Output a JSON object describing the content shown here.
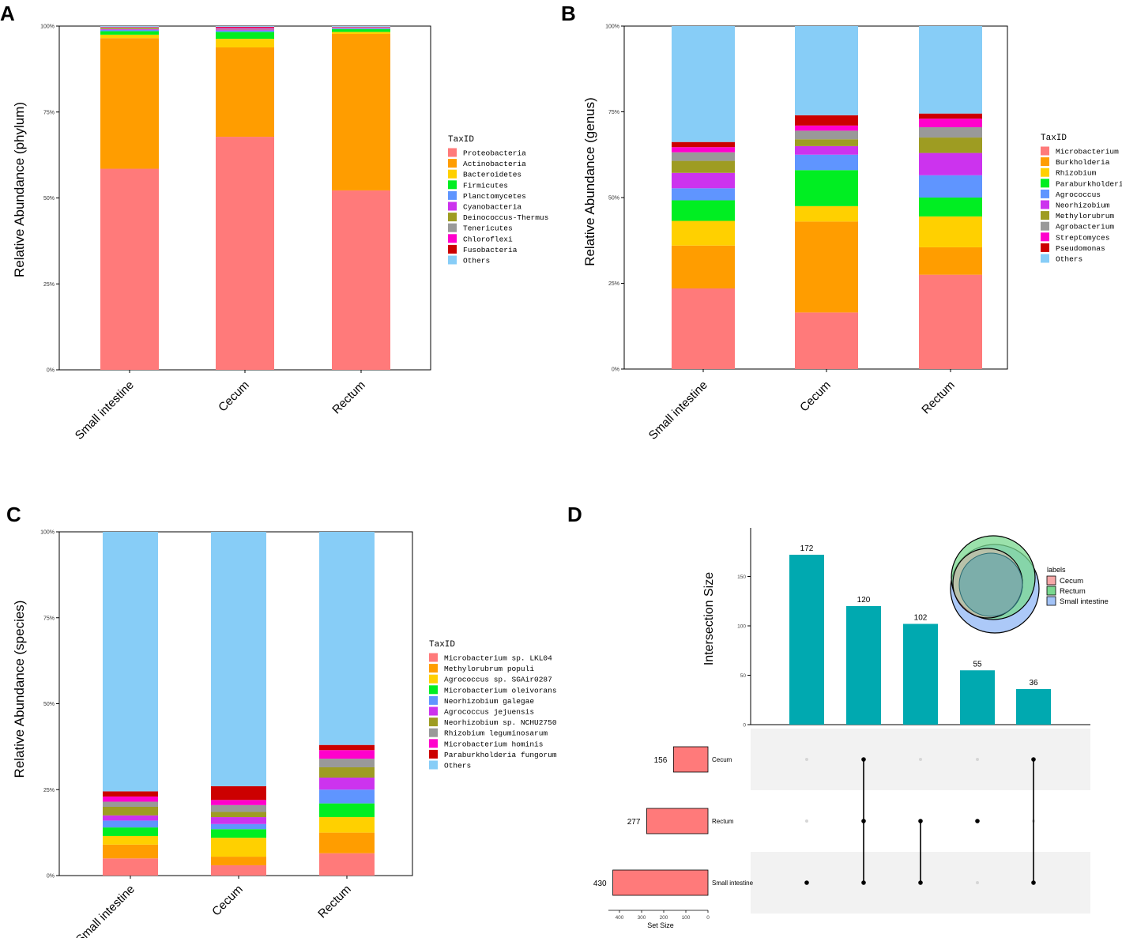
{
  "figure": {
    "panel_labels": [
      "A",
      "B",
      "C",
      "D"
    ]
  },
  "chart_data": [
    {
      "type": "bar",
      "stacked": true,
      "panel": "A",
      "ylabel": "Relative Abundance (phylum)",
      "yticks": [
        "0%",
        "25%",
        "50%",
        "75%",
        "100%"
      ],
      "ylim": [
        0,
        100
      ],
      "categories": [
        "Small intestine",
        "Cecum",
        "Rectum"
      ],
      "legend_title": "TaxID",
      "series": [
        {
          "name": "Proteobacteria",
          "color": "#ff7a7a",
          "values": [
            58.5,
            67.8,
            52.2
          ]
        },
        {
          "name": "Actinobacteria",
          "color": "#ff9d00",
          "values": [
            38.0,
            26.0,
            45.5
          ]
        },
        {
          "name": "Bacteroidetes",
          "color": "#ffd000",
          "values": [
            1.0,
            2.5,
            0.6
          ]
        },
        {
          "name": "Firmicutes",
          "color": "#00ee22",
          "values": [
            1.0,
            2.0,
            0.8
          ]
        },
        {
          "name": "Planctomycetes",
          "color": "#5f95ff",
          "values": [
            0.4,
            0.4,
            0.2
          ]
        },
        {
          "name": "Cyanobacteria",
          "color": "#cc33ee",
          "values": [
            0.2,
            0.3,
            0.1
          ]
        },
        {
          "name": "Deinococcus-Thermus",
          "color": "#9e9c22",
          "values": [
            0.3,
            0.1,
            0.1
          ]
        },
        {
          "name": "Tenericutes",
          "color": "#999999",
          "values": [
            0.2,
            0.2,
            0.1
          ]
        },
        {
          "name": "Chloroflexi",
          "color": "#ff00cc",
          "values": [
            0.1,
            0.3,
            0.1
          ]
        },
        {
          "name": "Fusobacteria",
          "color": "#cc0000",
          "values": [
            0.1,
            0.2,
            0.1
          ]
        },
        {
          "name": "Others",
          "color": "#87cdf7",
          "values": [
            0.2,
            0.2,
            0.2
          ]
        }
      ]
    },
    {
      "type": "bar",
      "stacked": true,
      "panel": "B",
      "ylabel": "Relative Abundance (genus)",
      "yticks": [
        "0%",
        "25%",
        "50%",
        "75%",
        "100%"
      ],
      "ylim": [
        0,
        100
      ],
      "categories": [
        "Small intestine",
        "Cecum",
        "Rectum"
      ],
      "legend_title": "TaxID",
      "series": [
        {
          "name": "Microbacterium",
          "color": "#ff7a7a",
          "values": [
            23.5,
            16.5,
            27.5
          ]
        },
        {
          "name": "Burkholderia",
          "color": "#ff9d00",
          "values": [
            12.5,
            26.5,
            8.0
          ]
        },
        {
          "name": "Rhizobium",
          "color": "#ffd000",
          "values": [
            7.2,
            4.5,
            9.0
          ]
        },
        {
          "name": "Paraburkholderia",
          "color": "#00ee22",
          "values": [
            6.0,
            10.5,
            5.5
          ]
        },
        {
          "name": "Agrococcus",
          "color": "#5f95ff",
          "values": [
            3.5,
            4.5,
            6.5
          ]
        },
        {
          "name": "Neorhizobium",
          "color": "#cc33ee",
          "values": [
            4.5,
            2.5,
            6.5
          ]
        },
        {
          "name": "Methylorubrum",
          "color": "#9e9c22",
          "values": [
            3.5,
            2.0,
            4.5
          ]
        },
        {
          "name": "Agrobacterium",
          "color": "#999999",
          "values": [
            2.5,
            2.5,
            3.0
          ]
        },
        {
          "name": "Streptomyces",
          "color": "#ff00cc",
          "values": [
            1.5,
            1.5,
            2.5
          ]
        },
        {
          "name": "Pseudomonas",
          "color": "#cc0000",
          "values": [
            1.5,
            3.0,
            1.5
          ]
        },
        {
          "name": "Others",
          "color": "#87cdf7",
          "values": [
            33.8,
            26.0,
            25.5
          ]
        }
      ]
    },
    {
      "type": "bar",
      "stacked": true,
      "panel": "C",
      "ylabel": "Relative Abundance (species)",
      "yticks": [
        "0%",
        "25%",
        "50%",
        "75%",
        "100%"
      ],
      "ylim": [
        0,
        100
      ],
      "categories": [
        "Small intestine",
        "Cecum",
        "Rectum"
      ],
      "legend_title": "TaxID",
      "series": [
        {
          "name": "Microbacterium sp. LKL04",
          "color": "#ff7a7a",
          "values": [
            5.0,
            3.0,
            6.5
          ]
        },
        {
          "name": "Methylorubrum populi",
          "color": "#ff9d00",
          "values": [
            4.0,
            2.5,
            6.0
          ]
        },
        {
          "name": "Agrococcus sp. SGAir0287",
          "color": "#ffd000",
          "values": [
            2.5,
            5.5,
            4.5
          ]
        },
        {
          "name": "Microbacterium oleivorans",
          "color": "#00ee22",
          "values": [
            2.5,
            2.5,
            4.0
          ]
        },
        {
          "name": "Neorhizobium galegae",
          "color": "#5f95ff",
          "values": [
            2.0,
            1.5,
            4.0
          ]
        },
        {
          "name": "Agrococcus jejuensis",
          "color": "#cc33ee",
          "values": [
            1.5,
            2.0,
            3.5
          ]
        },
        {
          "name": "Neorhizobium sp. NCHU2750",
          "color": "#9e9c22",
          "values": [
            2.5,
            1.5,
            3.0
          ]
        },
        {
          "name": "Rhizobium leguminosarum",
          "color": "#999999",
          "values": [
            1.5,
            2.0,
            2.5
          ]
        },
        {
          "name": "Microbacterium hominis",
          "color": "#ff00cc",
          "values": [
            1.5,
            1.5,
            2.5
          ]
        },
        {
          "name": "Paraburkholderia fungorum",
          "color": "#cc0000",
          "values": [
            1.5,
            4.0,
            1.5
          ]
        },
        {
          "name": "Others",
          "color": "#87cdf7",
          "values": [
            75.5,
            74.0,
            62.0
          ]
        }
      ]
    },
    {
      "type": "upset",
      "panel": "D",
      "ylabel": "Intersection Size",
      "yticks": [
        "0",
        "50",
        "100",
        "150"
      ],
      "ylim": [
        0,
        190
      ],
      "bar_color": "#00a9b0",
      "intersections": [
        {
          "value": 172,
          "label": "172",
          "members": [
            "Small intestine"
          ]
        },
        {
          "value": 120,
          "label": "120",
          "members": [
            "Cecum",
            "Rectum",
            "Small intestine"
          ]
        },
        {
          "value": 102,
          "label": "102",
          "members": [
            "Rectum",
            "Small intestine"
          ]
        },
        {
          "value": 55,
          "label": "55",
          "members": [
            "Rectum"
          ]
        },
        {
          "value": 36,
          "label": "36",
          "members": [
            "Cecum",
            "Small intestine"
          ]
        }
      ],
      "sets": [
        {
          "name": "Cecum",
          "size": 156,
          "label": "156"
        },
        {
          "name": "Rectum",
          "size": 277,
          "label": "277"
        },
        {
          "name": "Small intestine",
          "size": 430,
          "label": "430"
        }
      ],
      "set_size_xlabel": "Set Size",
      "set_size_ticks": [
        "400",
        "300",
        "200",
        "100",
        "0"
      ],
      "set_bar_color": "#ff7a7a",
      "venn_legend": {
        "title": "labels",
        "items": [
          {
            "name": "Cecum",
            "color": "#f6a8a8"
          },
          {
            "name": "Rectum",
            "color": "#7ad88f"
          },
          {
            "name": "Small intestine",
            "color": "#a3c3f7"
          }
        ]
      }
    }
  ]
}
